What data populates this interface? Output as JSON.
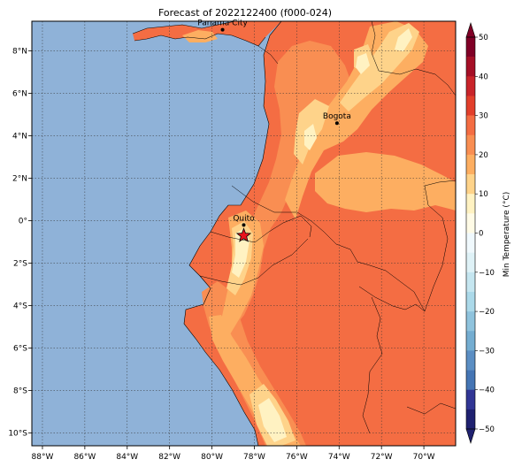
{
  "title": "Forecast of 2022122400 (f000-024)",
  "colorbar": {
    "label": "Min Temperature (°C)",
    "ticks": [
      "50",
      "40",
      "30",
      "20",
      "10",
      "0",
      "−10",
      "−20",
      "−30",
      "−40",
      "−50"
    ],
    "levels": [
      {
        "from": 45,
        "to": 50,
        "color": "#800026"
      },
      {
        "from": 40,
        "to": 45,
        "color": "#a50f26"
      },
      {
        "from": 35,
        "to": 40,
        "color": "#c9242a"
      },
      {
        "from": 30,
        "to": 35,
        "color": "#e23f2b"
      },
      {
        "from": 25,
        "to": 30,
        "color": "#f46d43"
      },
      {
        "from": 20,
        "to": 25,
        "color": "#f98e52"
      },
      {
        "from": 15,
        "to": 20,
        "color": "#fdae61"
      },
      {
        "from": 10,
        "to": 15,
        "color": "#fed38a"
      },
      {
        "from": 5,
        "to": 10,
        "color": "#fff2c2"
      },
      {
        "from": 0,
        "to": 5,
        "color": "#fffbe6"
      },
      {
        "from": -5,
        "to": 0,
        "color": "#f0f9fd"
      },
      {
        "from": -10,
        "to": -5,
        "color": "#dff2f7"
      },
      {
        "from": -15,
        "to": -10,
        "color": "#c5e6f0"
      },
      {
        "from": -20,
        "to": -15,
        "color": "#abd9e9"
      },
      {
        "from": -25,
        "to": -20,
        "color": "#8fc3dd"
      },
      {
        "from": -30,
        "to": -25,
        "color": "#74add1"
      },
      {
        "from": -35,
        "to": -30,
        "color": "#5b8ec3"
      },
      {
        "from": -40,
        "to": -35,
        "color": "#4575b4"
      },
      {
        "from": -45,
        "to": -40,
        "color": "#313695"
      },
      {
        "from": -50,
        "to": -45,
        "color": "#1f2170"
      }
    ]
  },
  "map": {
    "ocean_color": "#8fb2d8",
    "lon_range": [
      -88.5,
      -68.5
    ],
    "lat_range": [
      -10.6,
      9.4
    ],
    "x_ticks": [
      {
        "value": -88,
        "label": "88°W"
      },
      {
        "value": -86,
        "label": "86°W"
      },
      {
        "value": -84,
        "label": "84°W"
      },
      {
        "value": -82,
        "label": "82°W"
      },
      {
        "value": -80,
        "label": "80°W"
      },
      {
        "value": -78,
        "label": "78°W"
      },
      {
        "value": -76,
        "label": "76°W"
      },
      {
        "value": -74,
        "label": "74°W"
      },
      {
        "value": -72,
        "label": "72°W"
      },
      {
        "value": -70,
        "label": "70°W"
      }
    ],
    "y_ticks": [
      {
        "value": 8,
        "label": "8°N"
      },
      {
        "value": 6,
        "label": "6°N"
      },
      {
        "value": 4,
        "label": "4°N"
      },
      {
        "value": 2,
        "label": "2°N"
      },
      {
        "value": 0,
        "label": "0°"
      },
      {
        "value": -2,
        "label": "2°S"
      },
      {
        "value": -4,
        "label": "4°S"
      },
      {
        "value": -6,
        "label": "6°S"
      },
      {
        "value": -8,
        "label": "8°S"
      },
      {
        "value": -10,
        "label": "10°S"
      }
    ],
    "cities": [
      {
        "name": "Panama City",
        "lon": -79.5,
        "lat": 9.0
      },
      {
        "name": "Bogota",
        "lon": -74.1,
        "lat": 4.6
      },
      {
        "name": "Quito",
        "lon": -78.5,
        "lat": -0.2
      }
    ],
    "marker": {
      "type": "star",
      "lon": -78.5,
      "lat": -0.7,
      "color": "#e8141c"
    }
  }
}
